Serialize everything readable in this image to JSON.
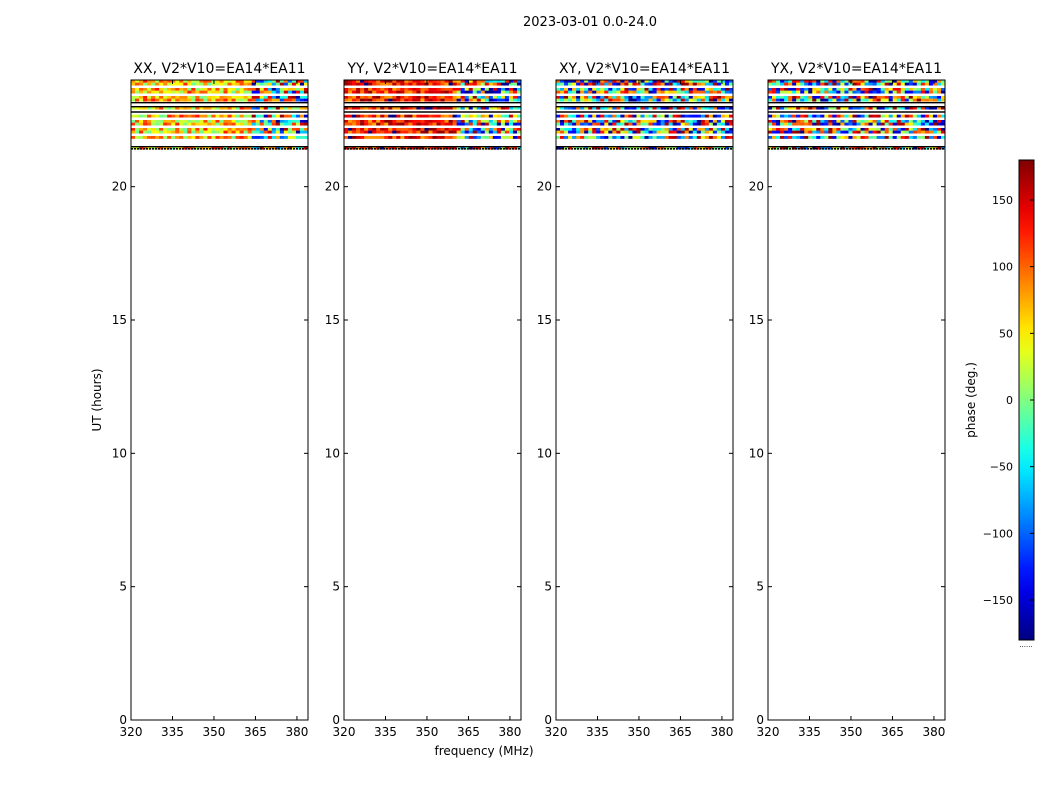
{
  "figure": {
    "suptitle": "2023-03-01 0.0-24.0",
    "ylabel": "UT (hours)",
    "xlabel": "frequency (MHz)"
  },
  "colorbar": {
    "label": "phase (deg.)",
    "range": [
      -180,
      180
    ],
    "ticks": [
      -150,
      -100,
      -50,
      0,
      50,
      100,
      150
    ],
    "tick_labels": [
      "−150",
      "−100",
      "−50",
      "0",
      "50",
      "100",
      "150"
    ],
    "colormap": "jet",
    "footer": "......"
  },
  "chart_data": [
    {
      "type": "heatmap",
      "title": "XX, V2*V10=EA14*EA11",
      "x_tick_labels": [
        "320",
        "335",
        "350",
        "365",
        "380"
      ],
      "y_tick_labels": [
        "0",
        "5",
        "10",
        "15",
        "20"
      ],
      "xlim": [
        320,
        384
      ],
      "ylim": [
        0,
        24
      ],
      "data_hours": [
        21.4,
        24.0
      ],
      "empty_hours": [
        [
          23.0,
          23.15
        ],
        [
          22.7,
          22.8
        ],
        [
          21.5,
          21.75
        ]
      ],
      "phase_center_deg": 60,
      "phase_spread_deg": 70,
      "noisy_above_mhz": 363,
      "xlabel": "",
      "ylabel": "UT (hours)"
    },
    {
      "type": "heatmap",
      "title": "YY, V2*V10=EA14*EA11",
      "x_tick_labels": [
        "320",
        "335",
        "350",
        "365",
        "380"
      ],
      "y_tick_labels": [
        "0",
        "5",
        "10",
        "15",
        "20"
      ],
      "xlim": [
        320,
        384
      ],
      "ylim": [
        0,
        24
      ],
      "data_hours": [
        21.4,
        24.0
      ],
      "empty_hours": [
        [
          23.0,
          23.15
        ],
        [
          22.7,
          22.8
        ],
        [
          21.5,
          21.75
        ]
      ],
      "phase_center_deg": 130,
      "phase_spread_deg": 55,
      "noisy_above_mhz": 361,
      "xlabel": "frequency (MHz)",
      "ylabel": ""
    },
    {
      "type": "heatmap",
      "title": "XY, V2*V10=EA14*EA11",
      "x_tick_labels": [
        "320",
        "335",
        "350",
        "365",
        "380"
      ],
      "y_tick_labels": [
        "0",
        "5",
        "10",
        "15",
        "20"
      ],
      "xlim": [
        320,
        384
      ],
      "ylim": [
        0,
        24
      ],
      "data_hours": [
        21.4,
        24.0
      ],
      "empty_hours": [
        [
          23.0,
          23.15
        ],
        [
          22.7,
          22.8
        ],
        [
          21.5,
          21.75
        ]
      ],
      "phase_center_deg": 0,
      "phase_spread_deg": 180,
      "noisy_above_mhz": 320,
      "xlabel": "",
      "ylabel": ""
    },
    {
      "type": "heatmap",
      "title": "YX, V2*V10=EA14*EA11",
      "x_tick_labels": [
        "320",
        "335",
        "350",
        "365",
        "380"
      ],
      "y_tick_labels": [
        "0",
        "5",
        "10",
        "15",
        "20"
      ],
      "xlim": [
        320,
        384
      ],
      "ylim": [
        0,
        24
      ],
      "data_hours": [
        21.4,
        24.0
      ],
      "empty_hours": [
        [
          23.0,
          23.15
        ],
        [
          22.7,
          22.8
        ],
        [
          21.5,
          21.75
        ]
      ],
      "phase_center_deg": 20,
      "phase_spread_deg": 180,
      "noisy_above_mhz": 320,
      "xlabel": "",
      "ylabel": ""
    }
  ]
}
